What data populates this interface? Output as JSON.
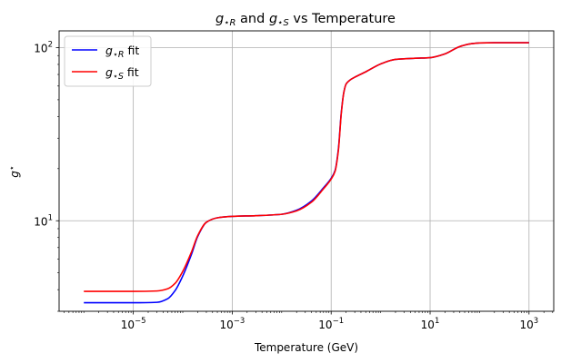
{
  "chart_data": {
    "type": "line",
    "title": {
      "g": "g",
      "sub_r": "⋆R",
      "mid": " and ",
      "sub_s": "⋆S",
      "tail": " vs Temperature"
    },
    "xlabel": "Temperature (GeV)",
    "ylabel": {
      "g": "g",
      "sub": "⋆"
    },
    "x_scale": "log",
    "y_scale": "log",
    "xlim": [
      3.16e-07,
      3160
    ],
    "ylim": [
      3.0,
      125
    ],
    "grid": true,
    "legend_position": "top-left",
    "x_ticks": [
      {
        "base": "10",
        "exp": "−5",
        "value": 1e-05
      },
      {
        "base": "10",
        "exp": "−3",
        "value": 0.001
      },
      {
        "base": "10",
        "exp": "−1",
        "value": 0.1
      },
      {
        "base": "10",
        "exp": "1",
        "value": 10
      },
      {
        "base": "10",
        "exp": "3",
        "value": 1000
      }
    ],
    "y_ticks": [
      {
        "base": "10",
        "exp": "1",
        "value": 10
      },
      {
        "base": "10",
        "exp": "2",
        "value": 100
      }
    ],
    "series": [
      {
        "name": {
          "g": "g",
          "sub": "⋆R",
          "suffix": " fit"
        },
        "color": "#0000ff",
        "x": [
          1e-06,
          1e-05,
          3e-05,
          5e-05,
          7e-05,
          0.0001,
          0.00015,
          0.0002,
          0.0003,
          0.0005,
          0.001,
          0.003,
          0.01,
          0.02,
          0.04,
          0.07,
          0.1,
          0.12,
          0.14,
          0.16,
          0.18,
          0.2,
          0.25,
          0.3,
          0.5,
          1,
          2,
          5,
          10,
          20,
          40,
          70,
          100,
          200,
          500,
          1000
        ],
        "y": [
          3.36,
          3.36,
          3.38,
          3.55,
          3.95,
          4.8,
          6.4,
          8.1,
          9.8,
          10.4,
          10.6,
          10.7,
          10.9,
          11.5,
          13.0,
          15.5,
          17.6,
          19.5,
          26.0,
          42.0,
          55.0,
          61.5,
          65.5,
          67.5,
          72.5,
          80.5,
          85.5,
          86.8,
          87.5,
          92.0,
          101.5,
          105.5,
          106.5,
          106.75,
          106.75,
          106.75
        ]
      },
      {
        "name": {
          "g": "g",
          "sub": "⋆S",
          "suffix": " fit"
        },
        "color": "#ff0000",
        "x": [
          1e-06,
          1e-05,
          3e-05,
          5e-05,
          7e-05,
          0.0001,
          0.00015,
          0.0002,
          0.0003,
          0.0005,
          0.001,
          0.003,
          0.01,
          0.02,
          0.04,
          0.07,
          0.1,
          0.12,
          0.14,
          0.16,
          0.18,
          0.2,
          0.25,
          0.3,
          0.5,
          1,
          2,
          5,
          10,
          20,
          40,
          70,
          100,
          200,
          500,
          1000
        ],
        "y": [
          3.91,
          3.91,
          3.93,
          4.05,
          4.35,
          5.1,
          6.6,
          8.2,
          9.8,
          10.4,
          10.6,
          10.7,
          10.9,
          11.4,
          12.8,
          15.3,
          17.4,
          19.3,
          25.5,
          41.5,
          55.0,
          61.5,
          65.5,
          67.5,
          72.5,
          80.5,
          85.5,
          86.8,
          87.5,
          92.0,
          101.5,
          105.5,
          106.5,
          106.75,
          106.75,
          106.75
        ]
      }
    ]
  }
}
